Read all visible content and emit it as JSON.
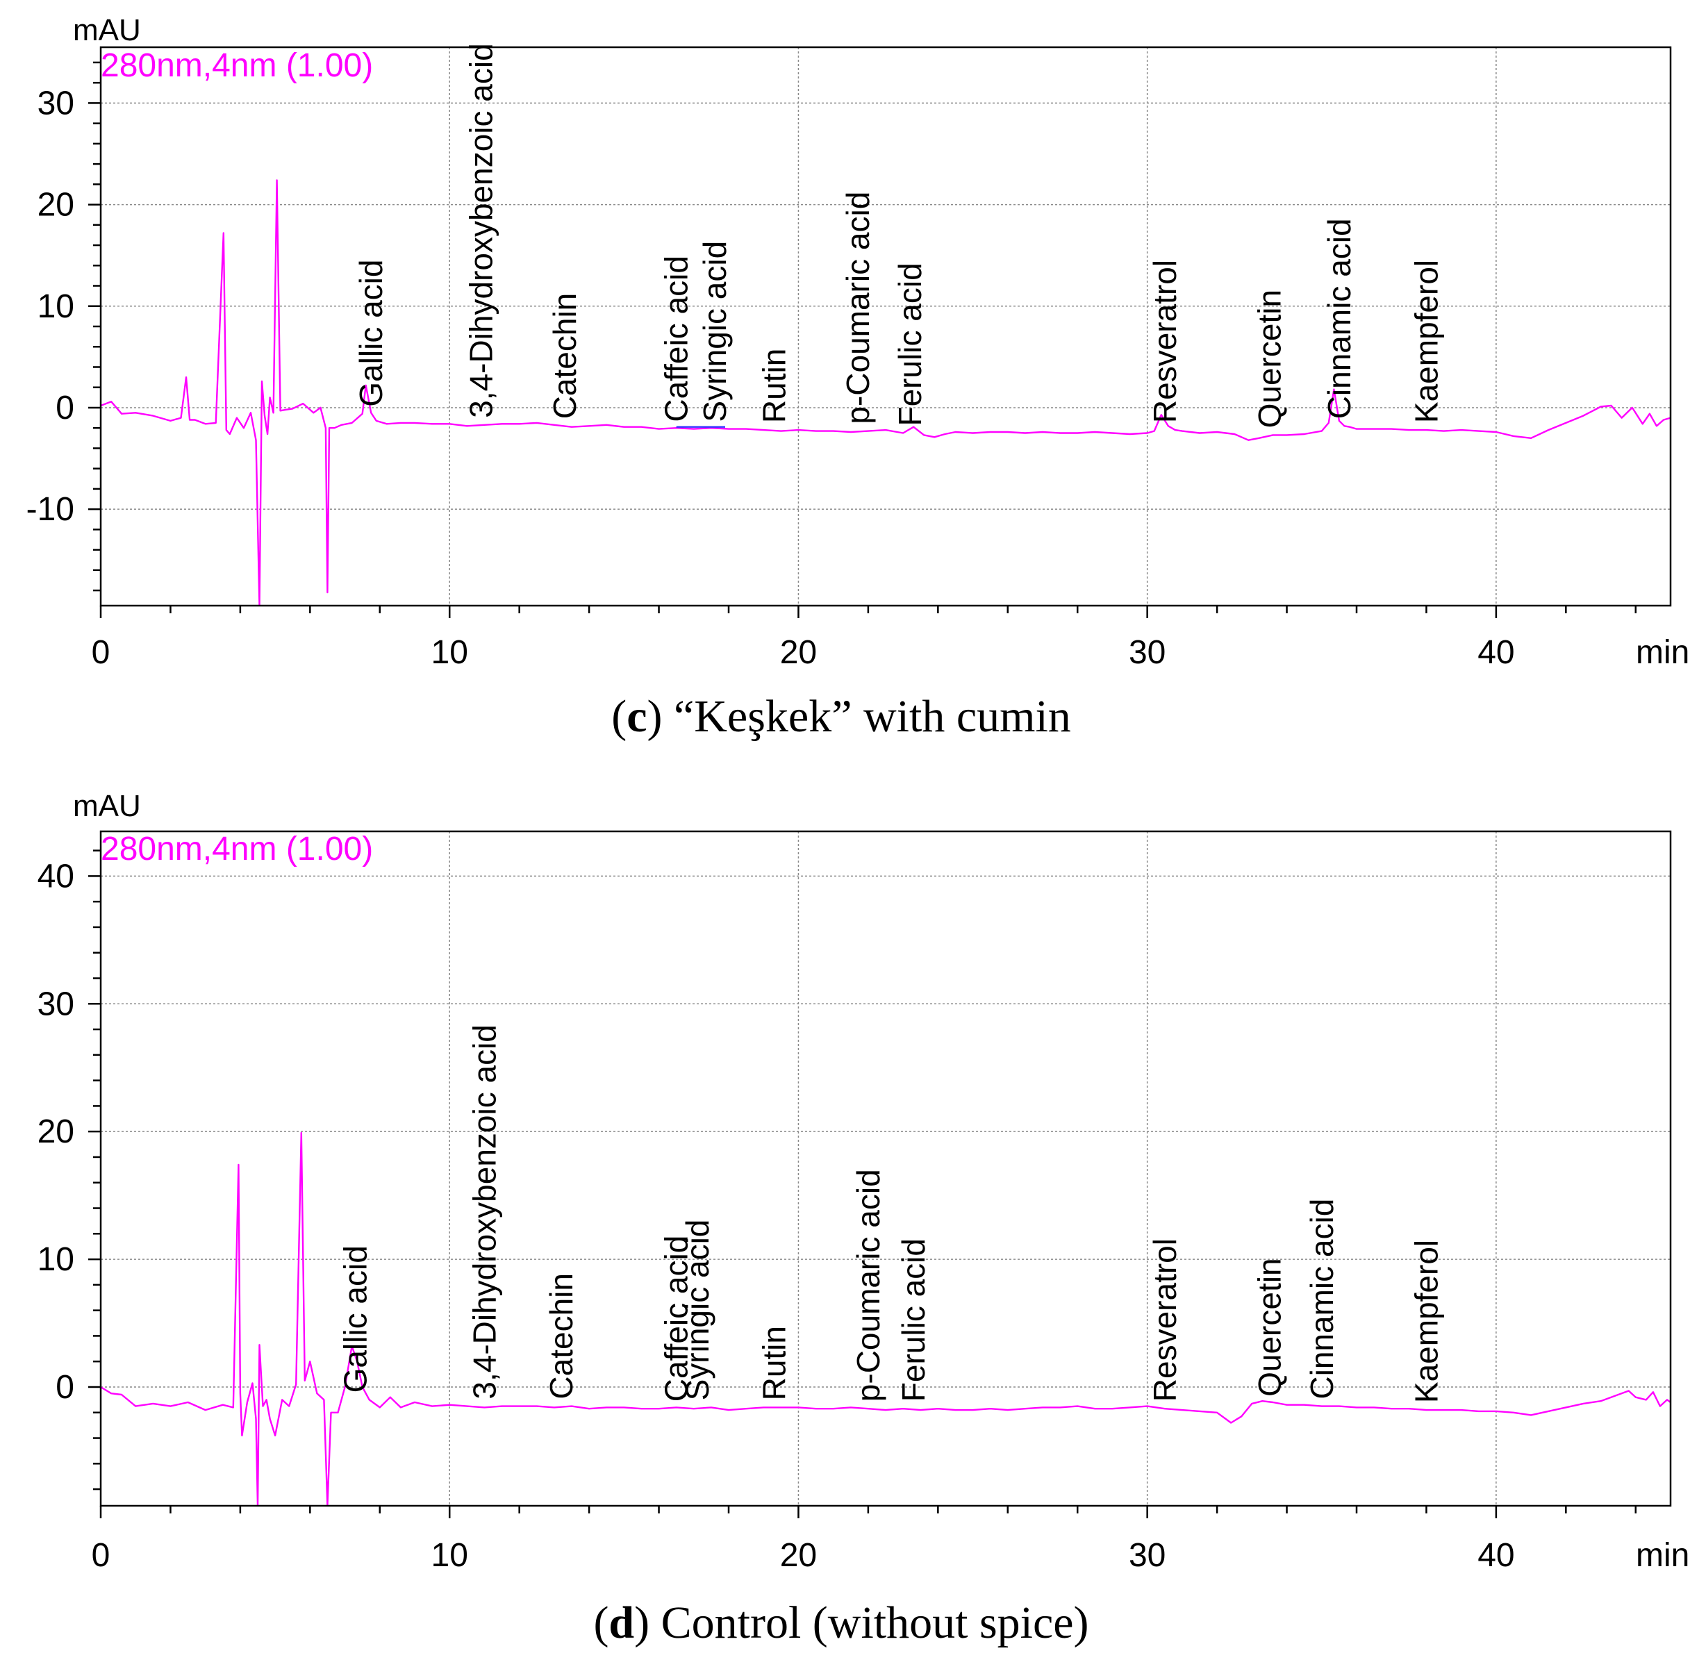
{
  "colors": {
    "trace": "#ff00ff",
    "highlight": "#3333ff",
    "grid": "#8a8a8a",
    "axis": "#000000"
  },
  "chart_data": [
    {
      "type": "line",
      "panel_letter": "c",
      "caption_text": "“Keşkek” with cumin",
      "ylabel": "mAU",
      "xlabel": "min",
      "wavelength_label": "280nm,4nm (1.00)",
      "xlim": [
        0,
        45
      ],
      "ylim": [
        -19.5,
        35.5
      ],
      "xticks": [
        0,
        10,
        20,
        30,
        40
      ],
      "xtick_labels": [
        "0",
        "10",
        "20",
        "30",
        "40"
      ],
      "yticks": [
        -10,
        0,
        10,
        20,
        30
      ],
      "ytick_labels": [
        "-10",
        "0",
        "10",
        "20",
        "30"
      ],
      "x_minor_step": 2,
      "y_minor_step": 2,
      "grid": true,
      "series": [
        {
          "name": "280nm,4nm (1.00)",
          "x": [
            0,
            0.3,
            0.6,
            1.0,
            1.5,
            2.0,
            2.3,
            2.45,
            2.55,
            2.7,
            3.0,
            3.3,
            3.52,
            3.6,
            3.7,
            3.9,
            4.1,
            4.3,
            4.45,
            4.55,
            4.62,
            4.7,
            4.78,
            4.85,
            4.95,
            5.05,
            5.15,
            5.3,
            5.5,
            5.8,
            6.1,
            6.3,
            6.45,
            6.5,
            6.55,
            6.7,
            6.9,
            7.2,
            7.5,
            7.6,
            7.75,
            7.9,
            8.2,
            8.6,
            9.0,
            9.5,
            10.0,
            10.5,
            11.0,
            11.5,
            12.0,
            12.5,
            13.0,
            13.5,
            14.0,
            14.5,
            15.0,
            15.5,
            16.0,
            16.5,
            17.0,
            17.5,
            18.0,
            18.5,
            19.0,
            19.5,
            20.0,
            20.5,
            21.0,
            21.5,
            22.0,
            22.5,
            23.0,
            23.3,
            23.6,
            23.9,
            24.2,
            24.5,
            25.0,
            25.5,
            26.0,
            26.5,
            27.0,
            27.5,
            28.0,
            28.5,
            29.0,
            29.5,
            30.0,
            30.2,
            30.4,
            30.6,
            30.8,
            31.0,
            31.5,
            32.0,
            32.5,
            32.9,
            33.2,
            33.6,
            34.0,
            34.5,
            35.0,
            35.2,
            35.35,
            35.5,
            35.65,
            35.8,
            36.0,
            36.5,
            37.0,
            37.5,
            38.0,
            38.5,
            39.0,
            39.5,
            40.0,
            40.5,
            41.0,
            41.5,
            42.0,
            42.5,
            43.0,
            43.3,
            43.6,
            43.9,
            44.2,
            44.4,
            44.6,
            44.8,
            45.0
          ],
          "values": [
            0.2,
            0.6,
            -0.6,
            -0.5,
            -0.8,
            -1.3,
            -1.0,
            3.0,
            -1.2,
            -1.2,
            -1.6,
            -1.5,
            17.2,
            -2.2,
            -2.6,
            -1.0,
            -2.0,
            -0.5,
            -3.2,
            -19.5,
            2.6,
            -0.8,
            -2.6,
            1.0,
            -0.5,
            22.4,
            -0.3,
            -0.2,
            -0.1,
            0.4,
            -0.5,
            0.0,
            -2.0,
            -18.2,
            -2.0,
            -2.0,
            -1.7,
            -1.5,
            -0.6,
            2.2,
            -0.5,
            -1.3,
            -1.6,
            -1.5,
            -1.5,
            -1.6,
            -1.6,
            -1.8,
            -1.7,
            -1.6,
            -1.6,
            -1.5,
            -1.7,
            -1.9,
            -1.8,
            -1.7,
            -1.9,
            -1.9,
            -2.1,
            -2.0,
            -2.1,
            -2.0,
            -2.1,
            -2.1,
            -2.2,
            -2.3,
            -2.2,
            -2.3,
            -2.3,
            -2.4,
            -2.3,
            -2.2,
            -2.5,
            -1.9,
            -2.7,
            -2.9,
            -2.6,
            -2.4,
            -2.5,
            -2.4,
            -2.4,
            -2.5,
            -2.4,
            -2.5,
            -2.5,
            -2.4,
            -2.5,
            -2.6,
            -2.5,
            -2.3,
            -0.7,
            -1.8,
            -2.2,
            -2.3,
            -2.5,
            -2.4,
            -2.6,
            -3.2,
            -3.0,
            -2.7,
            -2.7,
            -2.6,
            -2.3,
            -1.5,
            1.8,
            -1.3,
            -1.8,
            -1.9,
            -2.1,
            -2.1,
            -2.1,
            -2.2,
            -2.2,
            -2.3,
            -2.2,
            -2.3,
            -2.4,
            -2.8,
            -3.0,
            -2.2,
            -1.5,
            -0.8,
            0.1,
            0.2,
            -1.0,
            0.0,
            -1.6,
            -0.6,
            -1.8,
            -1.2,
            -1.0
          ]
        }
      ],
      "peak_labels": [
        {
          "name": "Gallic acid",
          "rt": 7.75
        },
        {
          "name": "3,4-Dihydroxybenzoic acid",
          "rt": 10.9
        },
        {
          "name": "Catechin",
          "rt": 13.3
        },
        {
          "name": "Caffeic acid",
          "rt": 16.5
        },
        {
          "name": "Syringic acid",
          "rt": 17.6
        },
        {
          "name": "Rutin",
          "rt": 19.3
        },
        {
          "name": "p-Coumaric acid",
          "rt": 21.7
        },
        {
          "name": "Ferulic acid",
          "rt": 23.2
        },
        {
          "name": "Resveratrol",
          "rt": 30.5
        },
        {
          "name": "Quercetin",
          "rt": 33.5
        },
        {
          "name": "Cinnamic acid",
          "rt": 35.5
        },
        {
          "name": "Kaempferol",
          "rt": 38.0
        }
      ],
      "highlight_segment": {
        "x": [
          16.5,
          17.9
        ],
        "y": -1.9
      }
    },
    {
      "type": "line",
      "panel_letter": "d",
      "caption_text": "Control (without spice)",
      "ylabel": "mAU",
      "xlabel": "min",
      "wavelength_label": "280nm,4nm (1.00)",
      "xlim": [
        0,
        45
      ],
      "ylim": [
        -9.3,
        43.5
      ],
      "xticks": [
        0,
        10,
        20,
        30,
        40
      ],
      "xtick_labels": [
        "0",
        "10",
        "20",
        "30",
        "40"
      ],
      "yticks": [
        0,
        10,
        20,
        30,
        40
      ],
      "ytick_labels": [
        "0",
        "10",
        "20",
        "30",
        "40"
      ],
      "x_minor_step": 2,
      "y_minor_step": 2,
      "grid": true,
      "series": [
        {
          "name": "280nm,4nm (1.00)",
          "x": [
            0,
            0.3,
            0.6,
            1.0,
            1.5,
            2.0,
            2.5,
            3.0,
            3.5,
            3.8,
            3.95,
            4.0,
            4.05,
            4.2,
            4.35,
            4.45,
            4.5,
            4.55,
            4.65,
            4.75,
            4.85,
            5.0,
            5.2,
            5.4,
            5.6,
            5.75,
            5.85,
            6.0,
            6.2,
            6.4,
            6.5,
            6.6,
            6.8,
            7.0,
            7.2,
            7.35,
            7.5,
            7.7,
            8.0,
            8.3,
            8.6,
            9.0,
            9.5,
            10.0,
            10.5,
            11.0,
            11.5,
            12.0,
            12.5,
            13.0,
            13.5,
            14.0,
            14.5,
            15.0,
            15.5,
            16.0,
            16.5,
            17.0,
            17.5,
            18.0,
            18.5,
            19.0,
            19.5,
            20.0,
            20.5,
            21.0,
            21.5,
            22.0,
            22.5,
            23.0,
            23.5,
            24.0,
            24.5,
            25.0,
            25.5,
            26.0,
            26.5,
            27.0,
            27.5,
            28.0,
            28.5,
            29.0,
            29.5,
            30.0,
            30.5,
            31.0,
            31.5,
            32.0,
            32.4,
            32.7,
            33.0,
            33.3,
            33.6,
            34.0,
            34.5,
            35.0,
            35.5,
            36.0,
            36.5,
            37.0,
            37.5,
            38.0,
            38.5,
            39.0,
            39.5,
            40.0,
            40.5,
            41.0,
            41.5,
            42.0,
            42.5,
            43.0,
            43.5,
            43.8,
            44.0,
            44.3,
            44.5,
            44.7,
            44.9,
            45.0
          ],
          "values": [
            0.0,
            -0.5,
            -0.6,
            -1.5,
            -1.3,
            -1.5,
            -1.2,
            -1.8,
            -1.4,
            -1.6,
            17.4,
            -0.5,
            -3.8,
            -1.2,
            0.3,
            -2.5,
            -9.3,
            3.3,
            -1.5,
            -1.0,
            -2.5,
            -3.8,
            -1.0,
            -1.5,
            0.2,
            19.9,
            0.5,
            2.0,
            -0.5,
            -1.0,
            -9.3,
            -2.0,
            -2.0,
            0.0,
            3.2,
            2.0,
            0.0,
            -1.0,
            -1.6,
            -0.8,
            -1.6,
            -1.2,
            -1.5,
            -1.4,
            -1.5,
            -1.6,
            -1.5,
            -1.5,
            -1.5,
            -1.6,
            -1.5,
            -1.7,
            -1.6,
            -1.6,
            -1.7,
            -1.7,
            -1.6,
            -1.7,
            -1.6,
            -1.8,
            -1.7,
            -1.6,
            -1.6,
            -1.6,
            -1.7,
            -1.7,
            -1.6,
            -1.7,
            -1.8,
            -1.7,
            -1.8,
            -1.7,
            -1.8,
            -1.8,
            -1.7,
            -1.8,
            -1.7,
            -1.6,
            -1.6,
            -1.5,
            -1.7,
            -1.7,
            -1.6,
            -1.5,
            -1.7,
            -1.8,
            -1.9,
            -2.0,
            -2.8,
            -2.3,
            -1.3,
            -1.1,
            -1.2,
            -1.4,
            -1.4,
            -1.5,
            -1.5,
            -1.6,
            -1.6,
            -1.7,
            -1.7,
            -1.8,
            -1.8,
            -1.8,
            -1.9,
            -1.9,
            -2.0,
            -2.2,
            -1.9,
            -1.6,
            -1.3,
            -1.1,
            -0.6,
            -0.3,
            -0.8,
            -1.0,
            -0.4,
            -1.5,
            -1.0,
            -1.2
          ]
        }
      ],
      "peak_labels": [
        {
          "name": "Gallic acid",
          "rt": 7.3
        },
        {
          "name": "3,4-Dihydroxybenzoic acid",
          "rt": 11.0
        },
        {
          "name": "Catechin",
          "rt": 13.2
        },
        {
          "name": "Caffeic acid",
          "rt": 16.5
        },
        {
          "name": "Syringic acid",
          "rt": 17.1
        },
        {
          "name": "Rutin",
          "rt": 19.3
        },
        {
          "name": "p-Coumaric acid",
          "rt": 22.0
        },
        {
          "name": "Ferulic acid",
          "rt": 23.3
        },
        {
          "name": "Resveratrol",
          "rt": 30.5
        },
        {
          "name": "Quercetin",
          "rt": 33.5
        },
        {
          "name": "Cinnamic acid",
          "rt": 35.0
        },
        {
          "name": "Kaempferol",
          "rt": 38.0
        }
      ]
    }
  ]
}
